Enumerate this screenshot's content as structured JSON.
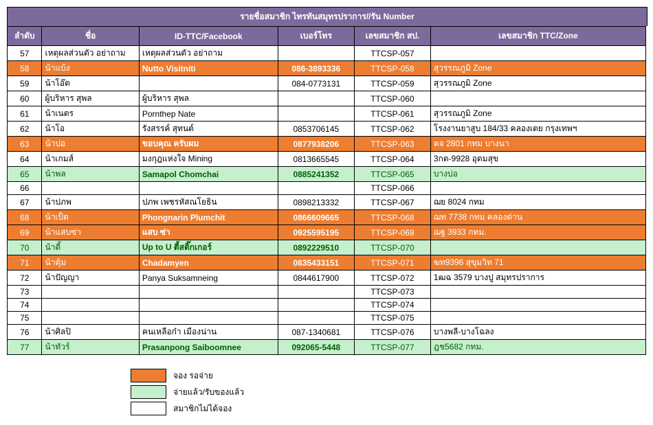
{
  "title": "รายชื่อสมาชิก ไทรทันสมุทรปราการ//รัน Number",
  "columns": [
    "ลำดับ",
    "ชื่อ",
    "ID-TTC/Facebook",
    "เบอร์โทร",
    "เลขสมาชิก สป.",
    "เลขสมาชิก TTC/Zone"
  ],
  "rows": [
    {
      "status": "",
      "cells": [
        "57",
        "เหตุผลส่วนตัว อย่าถาม",
        "เหตุผลส่วนตัว อย่าถาม",
        "",
        "TTCSP-057",
        ""
      ]
    },
    {
      "status": "orange",
      "cells": [
        "58",
        "น้าแบ้ง",
        "Nutto Visitniti",
        "086-3893336",
        "TTCSP-058",
        "สุวรรณภูมิ Zone"
      ]
    },
    {
      "status": "",
      "cells": [
        "59",
        "น้าโอ๊ต",
        "",
        "084-0773131",
        "TTCSP-059",
        "สุวรรณภูมิ Zone"
      ]
    },
    {
      "status": "",
      "cells": [
        "60",
        "ผู้บริหาร สุพล",
        "ผู้บริหาร สุพล",
        "",
        "TTCSP-060",
        ""
      ]
    },
    {
      "status": "",
      "cells": [
        "61",
        "น้าเนตร",
        " Pornthep Nate",
        "",
        "TTCSP-061",
        "สุวรรณภูมิ Zone"
      ]
    },
    {
      "status": "",
      "cells": [
        "62",
        "น้าโอ",
        "รังสรรค์ สุทนต์",
        "0853706145",
        "TTCSP-062",
        "โรงงานยาสูบ 184/33 คลองเตย กรุงเทพฯ"
      ]
    },
    {
      "status": "orange",
      "cells": [
        "63",
        "น้าปอ",
        "ขอบคุณ ครับผม",
        "0877938206",
        "TTCSP-063",
        "ตจ 2801 กทม บางนา"
      ]
    },
    {
      "status": "",
      "cells": [
        "64",
        "น้าเกมส์",
        "มงกุฎแห่งใจ Mining",
        "0813665545",
        "TTCSP-064",
        "3กต-9928 อุดมสุข"
      ]
    },
    {
      "status": "green",
      "cells": [
        "65",
        "น้าพล",
        "Samapol Chomchai",
        "0885241352",
        "TTCSP-065",
        "บางบ่อ"
      ]
    },
    {
      "status": "",
      "cells": [
        "66",
        "",
        "",
        "",
        "TTCSP-066",
        ""
      ]
    },
    {
      "status": "",
      "cells": [
        "67",
        "น้าปภพ",
        "ปภพ เพชรหัสณโยธิน",
        "0898213332",
        "TTCSP-067",
        "ฌย 8024 กทม"
      ]
    },
    {
      "status": "orange",
      "cells": [
        "68",
        "น้าเป็ด",
        "Phongnarin Plumchit",
        "0866609665",
        "TTCSP-068",
        "ฌท 7738 กทม คลองด่าน"
      ]
    },
    {
      "status": "orange",
      "cells": [
        "69",
        "น้าแสบซ่า",
        "แสบ ซ่า",
        "0925595195",
        "TTCSP-069",
        "ฌฐ 3933 กทม."
      ]
    },
    {
      "status": "green",
      "cells": [
        "70",
        "น้าตี้",
        "Up to U ตี้สติ๊กเกอร์",
        "0892229510",
        "TTCSP-070",
        ""
      ]
    },
    {
      "status": "orange",
      "cells": [
        "71",
        "น้าตุ้ม",
        "Chadamyen",
        "0835433151",
        "TTCSP-071",
        "ฆท9396  สุขุมวิท 71"
      ]
    },
    {
      "status": "",
      "cells": [
        "72",
        "น้าปัญญา",
        "Panya Suksamneing",
        "0844617900",
        "TTCSP-072",
        "1ฒฉ 3579  บางปู สมุทรปราการ"
      ]
    },
    {
      "status": "",
      "cells": [
        "73",
        "",
        "",
        "",
        "TTCSP-073",
        ""
      ]
    },
    {
      "status": "",
      "cells": [
        "74",
        "",
        "",
        "",
        "TTCSP-074",
        ""
      ]
    },
    {
      "status": "",
      "cells": [
        "75",
        "",
        "",
        "",
        "TTCSP-075",
        ""
      ]
    },
    {
      "status": "",
      "cells": [
        "76",
        "น้าศิลปิ",
        "คนเหลือก๋า เมืองน่าน",
        "087-1340681",
        "TTCSP-076",
        "บางพลี-บางโฉลง"
      ]
    },
    {
      "status": "green",
      "cells": [
        "77",
        "น้าทัวร์",
        "Prasanpong Saiboomnee",
        "092065-5448",
        "TTCSP-077",
        "ฎช5682 กทม."
      ]
    }
  ],
  "legend": [
    {
      "color": "orange",
      "label": "จอง รอจ่าย"
    },
    {
      "color": "green",
      "label": "จ่ายแล้ว/รับของแล้ว"
    },
    {
      "color": "white",
      "label": "สมาชิกไม่ได้จอง"
    }
  ],
  "boldCols": [
    2,
    3
  ],
  "centerCols": [
    0,
    3,
    4
  ]
}
